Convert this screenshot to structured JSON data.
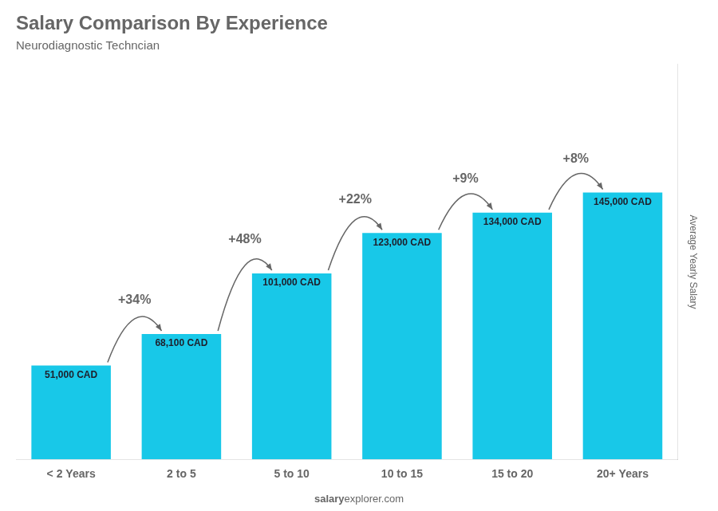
{
  "chart_data": {
    "type": "bar",
    "title": "Salary Comparison By Experience",
    "subtitle": "Neurodiagnostic Techncian",
    "y_label": "Average Yearly Salary",
    "categories": [
      "< 2 Years",
      "2 to 5",
      "5 to 10",
      "10 to 15",
      "15 to 20",
      "20+ Years"
    ],
    "values": [
      51000,
      68100,
      101000,
      123000,
      134000,
      145000
    ],
    "value_labels": [
      "51,000 CAD",
      "68,100 CAD",
      "101,000 CAD",
      "123,000 CAD",
      "134,000 CAD",
      "145,000 CAD"
    ],
    "data_labels": true,
    "color": "#18C8E8",
    "ylim": [
      0,
      214600
    ],
    "tick_labels": "x",
    "grid": false,
    "legend": false,
    "annotations": [
      "+34%",
      "+48%",
      "+22%",
      "+9%",
      "+8%"
    ],
    "watermark": [
      "salary",
      "explorer.com"
    ]
  }
}
